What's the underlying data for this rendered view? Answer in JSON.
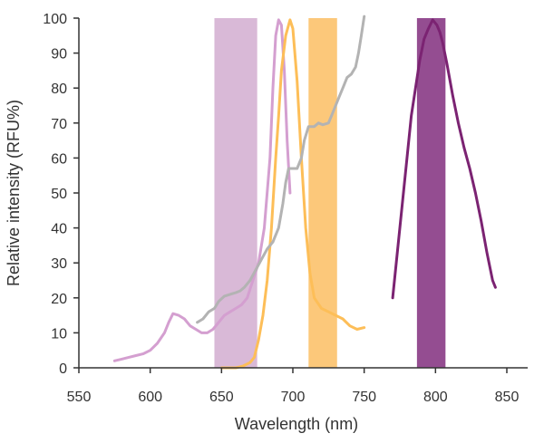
{
  "chart_data": {
    "type": "line",
    "xlabel": "Wavelength (nm)",
    "ylabel": "Relative intensity (RFU%)",
    "xlim": [
      550,
      850
    ],
    "ylim": [
      0,
      100
    ],
    "xticks": [
      550,
      600,
      650,
      700,
      750,
      800,
      850
    ],
    "yticks": [
      0,
      10,
      20,
      30,
      40,
      50,
      60,
      70,
      80,
      90,
      100
    ],
    "grid": false,
    "legend": "none",
    "bands": [
      {
        "x0": 645,
        "x1": 675,
        "color": "#d9b9d7"
      },
      {
        "x0": 711,
        "x1": 731,
        "color": "#fcc87a"
      },
      {
        "x0": 787,
        "x1": 807,
        "color": "#944d91"
      }
    ],
    "series": [
      {
        "color": "#d49fd0",
        "points": [
          [
            575,
            2
          ],
          [
            580,
            2.5
          ],
          [
            585,
            3
          ],
          [
            590,
            3.5
          ],
          [
            595,
            4
          ],
          [
            600,
            5
          ],
          [
            605,
            7
          ],
          [
            610,
            10
          ],
          [
            613,
            13
          ],
          [
            616,
            15.5
          ],
          [
            620,
            15
          ],
          [
            624,
            14
          ],
          [
            628,
            12
          ],
          [
            632,
            11
          ],
          [
            636,
            10
          ],
          [
            640,
            10
          ],
          [
            644,
            11
          ],
          [
            648,
            13
          ],
          [
            652,
            15
          ],
          [
            656,
            16
          ],
          [
            660,
            17
          ],
          [
            664,
            18
          ],
          [
            668,
            20
          ],
          [
            672,
            25
          ],
          [
            676,
            30
          ],
          [
            680,
            40
          ],
          [
            684,
            60
          ],
          [
            686,
            80
          ],
          [
            688,
            95
          ],
          [
            690,
            99.5
          ],
          [
            692,
            98
          ],
          [
            694,
            85
          ],
          [
            696,
            65
          ],
          [
            698,
            50
          ]
        ]
      },
      {
        "color": "#fdbe58",
        "points": [
          [
            650,
            0
          ],
          [
            655,
            0
          ],
          [
            660,
            0
          ],
          [
            665,
            0.5
          ],
          [
            670,
            1.5
          ],
          [
            673,
            3
          ],
          [
            676,
            8
          ],
          [
            679,
            15
          ],
          [
            682,
            25
          ],
          [
            685,
            40
          ],
          [
            688,
            60
          ],
          [
            690,
            72
          ],
          [
            692,
            85
          ],
          [
            695,
            95
          ],
          [
            698,
            99.5
          ],
          [
            700,
            97
          ],
          [
            703,
            82
          ],
          [
            706,
            60
          ],
          [
            709,
            40
          ],
          [
            712,
            27
          ],
          [
            715,
            20
          ],
          [
            720,
            17
          ],
          [
            725,
            16
          ],
          [
            730,
            15
          ],
          [
            735,
            14
          ],
          [
            740,
            12
          ],
          [
            745,
            11
          ],
          [
            750,
            11.5
          ]
        ]
      },
      {
        "color": "#b3b3b3",
        "points": [
          [
            633,
            13
          ],
          [
            637,
            14
          ],
          [
            641,
            16
          ],
          [
            645,
            17
          ],
          [
            648,
            19
          ],
          [
            652,
            20.5
          ],
          [
            656,
            21
          ],
          [
            660,
            21.5
          ],
          [
            663,
            22
          ],
          [
            666,
            23
          ],
          [
            670,
            25
          ],
          [
            674,
            28
          ],
          [
            678,
            31
          ],
          [
            682,
            34
          ],
          [
            686,
            36
          ],
          [
            690,
            40
          ],
          [
            693,
            47
          ],
          [
            695,
            53
          ],
          [
            697,
            57
          ],
          [
            700,
            57
          ],
          [
            703,
            57
          ],
          [
            706,
            60
          ],
          [
            708,
            65
          ],
          [
            711,
            69
          ],
          [
            715,
            69
          ],
          [
            718,
            70
          ],
          [
            721,
            69.5
          ],
          [
            725,
            70
          ],
          [
            728,
            73
          ],
          [
            732,
            77
          ],
          [
            735,
            80
          ],
          [
            738,
            83
          ],
          [
            741,
            84
          ],
          [
            744,
            86
          ],
          [
            746,
            90
          ],
          [
            748,
            95
          ],
          [
            750,
            100.5
          ]
        ]
      },
      {
        "color": "#7b2372",
        "points": [
          [
            770,
            20
          ],
          [
            775,
            40
          ],
          [
            780,
            60
          ],
          [
            783,
            72
          ],
          [
            786,
            80
          ],
          [
            789,
            88
          ],
          [
            792,
            94
          ],
          [
            795,
            97
          ],
          [
            798,
            99.5
          ],
          [
            801,
            98
          ],
          [
            803,
            96
          ],
          [
            805,
            93
          ],
          [
            808,
            87
          ],
          [
            812,
            78
          ],
          [
            816,
            70
          ],
          [
            820,
            63
          ],
          [
            824,
            57
          ],
          [
            828,
            50
          ],
          [
            832,
            42
          ],
          [
            836,
            33
          ],
          [
            840,
            25
          ],
          [
            842,
            23
          ]
        ]
      }
    ]
  }
}
